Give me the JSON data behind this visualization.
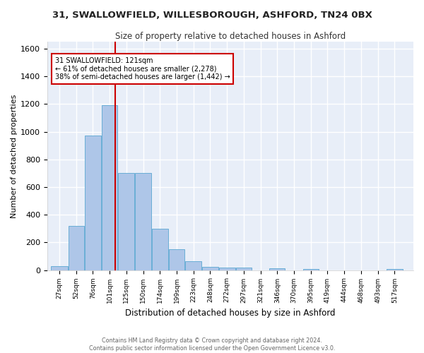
{
  "title": "31, SWALLOWFIELD, WILLESBOROUGH, ASHFORD, TN24 0BX",
  "subtitle": "Size of property relative to detached houses in Ashford",
  "xlabel": "Distribution of detached houses by size in Ashford",
  "ylabel": "Number of detached properties",
  "bar_color": "#aec6e8",
  "bar_edge_color": "#6aaed6",
  "background_color": "#e8eef8",
  "grid_color": "#ffffff",
  "fig_background": "#ffffff",
  "bin_labels": [
    "27sqm",
    "52sqm",
    "76sqm",
    "101sqm",
    "125sqm",
    "150sqm",
    "174sqm",
    "199sqm",
    "223sqm",
    "248sqm",
    "272sqm",
    "297sqm",
    "321sqm",
    "346sqm",
    "370sqm",
    "395sqm",
    "419sqm",
    "444sqm",
    "468sqm",
    "493sqm",
    "517sqm"
  ],
  "bin_edges": [
    27,
    52,
    76,
    101,
    125,
    150,
    174,
    199,
    223,
    248,
    272,
    297,
    321,
    346,
    370,
    395,
    419,
    444,
    468,
    493,
    517,
    542
  ],
  "bar_heights": [
    30,
    320,
    970,
    1190,
    700,
    700,
    300,
    150,
    65,
    25,
    20,
    20,
    0,
    15,
    0,
    10,
    0,
    0,
    0,
    0,
    10
  ],
  "ylim": [
    0,
    1650
  ],
  "yticks": [
    0,
    200,
    400,
    600,
    800,
    1000,
    1200,
    1400,
    1600
  ],
  "vline_x": 121,
  "annotation_title": "31 SWALLOWFIELD: 121sqm",
  "annotation_line1": "← 61% of detached houses are smaller (2,278)",
  "annotation_line2": "38% of semi-detached houses are larger (1,442) →",
  "annotation_box_color": "#ffffff",
  "annotation_box_edge": "#cc0000",
  "vline_color": "#cc0000",
  "footer_line1": "Contains HM Land Registry data © Crown copyright and database right 2024.",
  "footer_line2": "Contains public sector information licensed under the Open Government Licence v3.0."
}
